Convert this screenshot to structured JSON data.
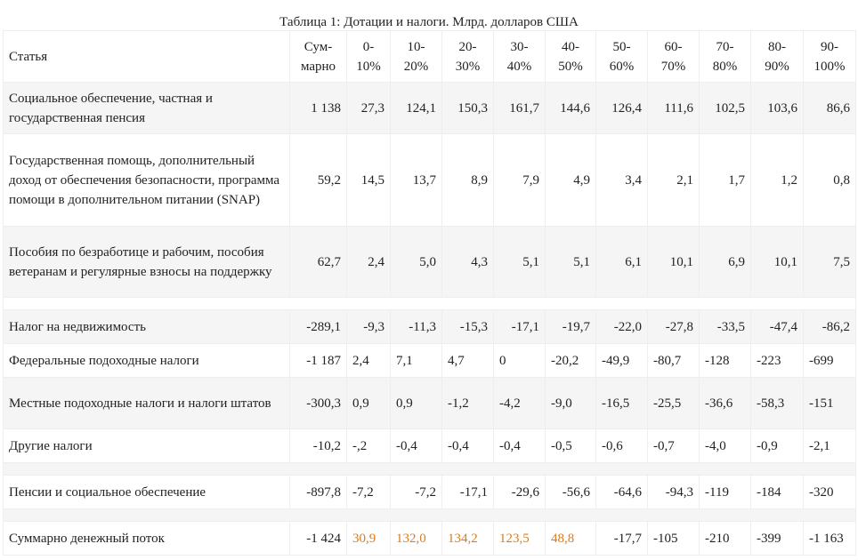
{
  "caption": "Таблица 1: Дотации и налоги. Млрд. долларов США",
  "header": {
    "article": "Статья",
    "total": [
      "Сум-",
      "марно"
    ],
    "deciles": [
      [
        "0-",
        "10%"
      ],
      [
        "10-",
        "20%"
      ],
      [
        "20-",
        "30%"
      ],
      [
        "30-",
        "40%"
      ],
      [
        "40-",
        "50%"
      ],
      [
        "50-",
        "60%"
      ],
      [
        "60-",
        "70%"
      ],
      [
        "70-",
        "80%"
      ],
      [
        "80-",
        "90%"
      ],
      [
        "90-",
        "100%"
      ]
    ]
  },
  "rows": [
    {
      "label": "Социальное обеспечение, частная и государственная пенсия",
      "values": [
        "1 138",
        "27,3",
        "124,1",
        "150,3",
        "161,7",
        "144,6",
        "126,4",
        "111,6",
        "102,5",
        "103,6",
        "86,6"
      ]
    },
    {
      "label": "Государственная помощь, дополнительный доход от обеспечения безопасности, программа помощи в дополнительном питании (SNAP)",
      "values": [
        "59,2",
        "14,5",
        "13,7",
        "8,9",
        "7,9",
        "4,9",
        "3,4",
        "2,1",
        "1,7",
        "1,2",
        "0,8"
      ]
    },
    {
      "label": "Пособия по безработице и рабочим, пособия ветеранам и регулярные взносы на поддержку",
      "values": [
        "62,7",
        "2,4",
        "5,0",
        "4,3",
        "5,1",
        "5,1",
        "6,1",
        "10,1",
        "6,9",
        "10,1",
        "7,5"
      ]
    },
    {
      "label": "Налог на недвижимость",
      "values": [
        "-289,1",
        "-9,3",
        "-11,3",
        "-15,3",
        "-17,1",
        "-19,7",
        "-22,0",
        "-27,8",
        "-33,5",
        "-47,4",
        "-86,2"
      ]
    },
    {
      "label": "Федеральные подоходные налоги",
      "values": [
        "-1 187",
        "2,4",
        "7,1",
        "4,7",
        "0",
        "-20,2",
        "-49,9",
        "-80,7",
        "-128",
        "-223",
        "-699"
      ]
    },
    {
      "label": "Местные подоходные налоги и налоги штатов",
      "values": [
        "-300,3",
        "0,9",
        "0,9",
        "-1,2",
        "-4,2",
        "-9,0",
        "-16,5",
        "-25,5",
        "-36,6",
        "-58,3",
        "-151"
      ]
    },
    {
      "label": "Другие налоги",
      "values": [
        "-10,2",
        "-,2",
        "-0,4",
        "-0,4",
        "-0,4",
        "-0,5",
        "-0,6",
        "-0,7",
        "-4,0",
        "-0,9",
        "-2,1"
      ]
    },
    {
      "label": "Пенсии и социальное обеспечение",
      "values": [
        "-897,8",
        "-7,2",
        "-7,2",
        "-17,1",
        "-29,6",
        "-56,6",
        "-64,6",
        "-94,3",
        "-119",
        "-184",
        "-320"
      ]
    },
    {
      "label": "Суммарно денежный поток",
      "values": [
        "-1 424",
        "30,9",
        "132,0",
        "134,2",
        "123,5",
        "48,8",
        "-17,7",
        "-105",
        "-210",
        "-399",
        "-1 163"
      ]
    }
  ],
  "colors": {
    "highlight": "#e07b16",
    "shade": "#f5f5f5",
    "border": "#eeeeee"
  }
}
